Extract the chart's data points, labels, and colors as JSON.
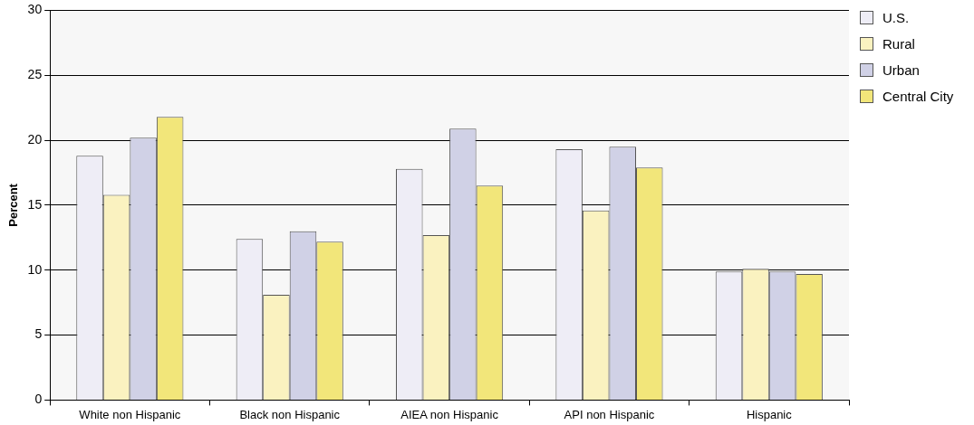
{
  "chart_data": {
    "type": "bar",
    "ylabel": "Percent",
    "categories": [
      "White non Hispanic",
      "Black non Hispanic",
      "AIEA non Hispanic",
      "API non Hispanic",
      "Hispanic"
    ],
    "series": [
      {
        "name": "U.S.",
        "color": "#eeedf6",
        "values": [
          18.8,
          12.4,
          17.8,
          19.3,
          9.9
        ]
      },
      {
        "name": "Rural",
        "color": "#faf2c0",
        "values": [
          15.8,
          8.1,
          12.7,
          14.6,
          10.1
        ]
      },
      {
        "name": "Urban",
        "color": "#d0d1e6",
        "values": [
          20.2,
          13.0,
          20.9,
          19.5,
          9.9
        ]
      },
      {
        "name": "Central City",
        "color": "#f2e67a",
        "values": [
          21.8,
          12.2,
          16.5,
          17.9,
          9.7
        ]
      }
    ],
    "ylim": [
      0,
      30
    ],
    "yticks": [
      0,
      5,
      10,
      15,
      20,
      25,
      30
    ],
    "grid": "y",
    "legend": "top right"
  }
}
